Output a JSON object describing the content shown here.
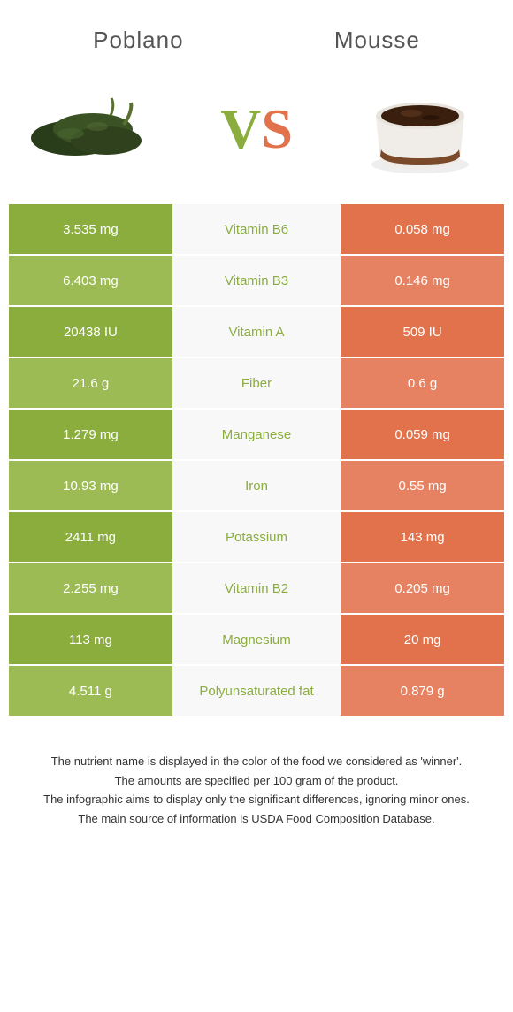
{
  "header": {
    "left_title": "Poblano",
    "right_title": "Mousse"
  },
  "vs": {
    "v": "V",
    "s": "S"
  },
  "colors": {
    "green_dark": "#8aad3e",
    "green_light": "#9dbb55",
    "orange_dark": "#e2724c",
    "orange_light": "#e68261",
    "mid_bg": "#f8f8f8",
    "mid_green": "#8aad3e",
    "mid_orange": "#e2724c"
  },
  "rows": [
    {
      "left": "3.535 mg",
      "mid": "Vitamin B6",
      "right": "0.058 mg",
      "winner": "left"
    },
    {
      "left": "6.403 mg",
      "mid": "Vitamin B3",
      "right": "0.146 mg",
      "winner": "left"
    },
    {
      "left": "20438 IU",
      "mid": "Vitamin A",
      "right": "509 IU",
      "winner": "left"
    },
    {
      "left": "21.6 g",
      "mid": "Fiber",
      "right": "0.6 g",
      "winner": "left"
    },
    {
      "left": "1.279 mg",
      "mid": "Manganese",
      "right": "0.059 mg",
      "winner": "left"
    },
    {
      "left": "10.93 mg",
      "mid": "Iron",
      "right": "0.55 mg",
      "winner": "left"
    },
    {
      "left": "2411 mg",
      "mid": "Potassium",
      "right": "143 mg",
      "winner": "left"
    },
    {
      "left": "2.255 mg",
      "mid": "Vitamin B2",
      "right": "0.205 mg",
      "winner": "left"
    },
    {
      "left": "113 mg",
      "mid": "Magnesium",
      "right": "20 mg",
      "winner": "left"
    },
    {
      "left": "4.511 g",
      "mid": "Polyunsaturated fat",
      "right": "0.879 g",
      "winner": "left"
    }
  ],
  "footer": {
    "line1": "The nutrient name is displayed in the color of the food we considered as 'winner'.",
    "line2": "The amounts are specified per 100 gram of the product.",
    "line3": "The infographic aims to display only the significant differences, ignoring minor ones.",
    "line4": "The main source of information is USDA Food Composition Database."
  }
}
